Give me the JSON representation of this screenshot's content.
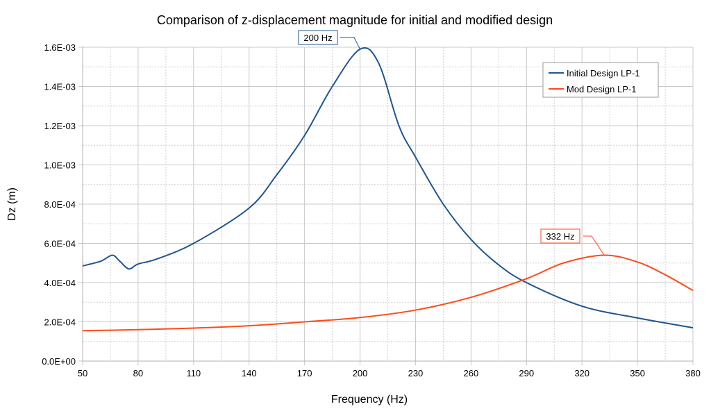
{
  "chart_data": {
    "type": "line",
    "title": "Comparison of z-displacement magnitude for initial and modified design",
    "xlabel": "Frequency (Hz)",
    "ylabel": "Dz (m)",
    "xlim": [
      50,
      380
    ],
    "ylim": [
      0,
      0.0016
    ],
    "x_ticks": [
      "50",
      "80",
      "110",
      "140",
      "170",
      "200",
      "230",
      "260",
      "290",
      "320",
      "350",
      "380"
    ],
    "y_ticks": [
      "0.0E+00",
      "2.0E-04",
      "4.0E-04",
      "6.0E-04",
      "8.0E-04",
      "1.0E-03",
      "1.2E-03",
      "1.4E-03",
      "1.6E-03"
    ],
    "grid": true,
    "legend_position": "top-right",
    "series": [
      {
        "name": "Initial Design LP-1",
        "color": "#1f5591",
        "x": [
          50,
          60,
          66,
          70,
          75,
          80,
          90,
          110,
          140,
          155,
          170,
          185,
          200,
          210,
          221,
          230,
          245,
          260,
          275,
          290,
          320,
          350,
          380
        ],
        "y": [
          0.000485,
          0.00051,
          0.00054,
          0.00051,
          0.00047,
          0.000495,
          0.00052,
          0.0006,
          0.00078,
          0.00095,
          0.00115,
          0.0014,
          0.00159,
          0.00152,
          0.0012,
          0.00104,
          0.0008,
          0.00062,
          0.00049,
          0.0004,
          0.00028,
          0.00022,
          0.00017
        ]
      },
      {
        "name": "Mod Design LP-1",
        "color": "#ff4a1a",
        "x": [
          50,
          80,
          110,
          140,
          170,
          200,
          230,
          260,
          290,
          310,
          332,
          350,
          365,
          380
        ],
        "y": [
          0.000155,
          0.00016,
          0.000168,
          0.00018,
          0.0002,
          0.000222,
          0.00026,
          0.000325,
          0.00042,
          0.0005,
          0.00054,
          0.000505,
          0.00044,
          0.00036
        ]
      }
    ],
    "annotations": [
      {
        "text": "200 Hz",
        "x": 200,
        "y": 0.00159,
        "series": 0
      },
      {
        "text": "332 Hz",
        "x": 332,
        "y": 0.00054,
        "series": 1
      }
    ]
  }
}
